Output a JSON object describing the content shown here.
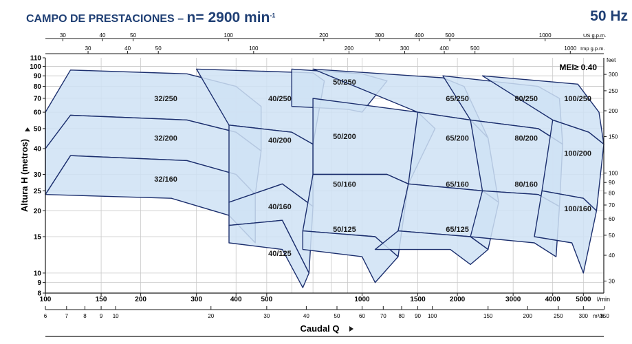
{
  "header": {
    "title_prefix": "CAMPO DE PRESTACIONES",
    "title_dash": "–",
    "speed_label": "n= 2900 min",
    "speed_exp": "-1",
    "frequency": "50 Hz"
  },
  "chart_data": {
    "type": "area",
    "title": "CAMPO DE PRESTACIONES – n= 2900 min-1",
    "ylabel": "Altura H (metros)",
    "xlabel": "Caudal Q",
    "y_scale": "log",
    "x_scale": "log",
    "grid": true,
    "annotation": "MEI≥ 0.40",
    "axes": {
      "x_lmin": {
        "unit": "l/min",
        "range": [
          100,
          5800
        ],
        "ticks": [
          100,
          150,
          200,
          300,
          400,
          500,
          1000,
          1500,
          2000,
          3000,
          4000,
          5000
        ]
      },
      "x_m3h": {
        "unit": "m³/h",
        "ticks": [
          6,
          7,
          8,
          9,
          10,
          20,
          30,
          40,
          50,
          60,
          70,
          80,
          90,
          100,
          150,
          200,
          250,
          300,
          350
        ]
      },
      "x_usgpm": {
        "unit": "US g.p.m.",
        "ticks": [
          30,
          40,
          50,
          100,
          200,
          300,
          400,
          500,
          1000
        ]
      },
      "x_impgpm": {
        "unit": "Imp g.p.m.",
        "ticks": [
          30,
          40,
          50,
          100,
          200,
          300,
          400,
          500,
          1000
        ]
      },
      "y_m": {
        "unit": "m",
        "range": [
          8,
          110
        ],
        "ticks": [
          8,
          9,
          10,
          15,
          20,
          25,
          30,
          40,
          50,
          60,
          70,
          80,
          90,
          100,
          110
        ]
      },
      "y_feet": {
        "unit": "feet",
        "ticks": [
          30,
          40,
          50,
          60,
          70,
          80,
          90,
          100,
          150,
          200,
          250,
          300
        ]
      }
    },
    "series": [
      {
        "name": "32/250",
        "top": [
          [
            100,
            60
          ],
          [
            120,
            96
          ],
          [
            280,
            92
          ],
          [
            400,
            80
          ],
          [
            480,
            64
          ]
        ],
        "bottom": [
          [
            100,
            40
          ],
          [
            120,
            58
          ],
          [
            280,
            55
          ],
          [
            400,
            48
          ],
          [
            480,
            39
          ]
        ],
        "label_at": [
          240,
          70
        ]
      },
      {
        "name": "32/200",
        "top": [
          [
            100,
            40
          ],
          [
            120,
            58
          ],
          [
            280,
            55
          ],
          [
            400,
            48
          ],
          [
            480,
            39
          ]
        ],
        "bottom": [
          [
            100,
            24
          ],
          [
            120,
            37
          ],
          [
            280,
            35
          ],
          [
            400,
            30
          ],
          [
            460,
            24
          ]
        ],
        "label_at": [
          240,
          45
        ]
      },
      {
        "name": "32/160",
        "top": [
          [
            100,
            24
          ],
          [
            120,
            37
          ],
          [
            280,
            35
          ],
          [
            400,
            30
          ],
          [
            460,
            24
          ]
        ],
        "bottom": [
          [
            100,
            24
          ],
          [
            250,
            23
          ],
          [
            380,
            19
          ],
          [
            460,
            14
          ]
        ],
        "label_at": [
          240,
          28.5
        ]
      },
      {
        "name": "40/250",
        "top": [
          [
            300,
            97
          ],
          [
            700,
            93
          ],
          [
            760,
            85
          ]
        ],
        "bottom": [
          [
            380,
            52
          ],
          [
            600,
            48
          ],
          [
            700,
            42
          ]
        ],
        "label_at": [
          550,
          70
        ]
      },
      {
        "name": "40/200",
        "top": [
          [
            380,
            52
          ],
          [
            600,
            48
          ],
          [
            700,
            42
          ]
        ],
        "bottom": [
          [
            380,
            22
          ],
          [
            560,
            27
          ],
          [
            700,
            21
          ]
        ],
        "label_at": [
          550,
          44
        ]
      },
      {
        "name": "40/160",
        "top": [
          [
            380,
            22
          ],
          [
            560,
            27
          ],
          [
            700,
            21
          ]
        ],
        "bottom": [
          [
            380,
            17
          ],
          [
            560,
            18
          ],
          [
            680,
            10
          ]
        ],
        "label_at": [
          550,
          21
        ]
      },
      {
        "name": "40/125",
        "top": [
          [
            380,
            17
          ],
          [
            560,
            18
          ],
          [
            680,
            10
          ]
        ],
        "bottom": [
          [
            380,
            14
          ],
          [
            560,
            13
          ],
          [
            650,
            8.5
          ]
        ],
        "label_at": [
          550,
          12.5
        ]
      },
      {
        "name": "50/250",
        "top": [
          [
            600,
            97
          ],
          [
            1000,
            92
          ],
          [
            1200,
            85
          ]
        ],
        "bottom": [
          [
            600,
            64
          ],
          [
            900,
            62
          ],
          [
            1000,
            60
          ]
        ],
        "label_at": [
          880,
          84
        ]
      },
      {
        "name": "50/200",
        "top": [
          [
            700,
            70
          ],
          [
            1500,
            60
          ],
          [
            1700,
            50
          ]
        ],
        "bottom": [
          [
            700,
            30
          ],
          [
            1200,
            30
          ],
          [
            1400,
            27
          ]
        ],
        "label_at": [
          880,
          46
        ]
      },
      {
        "name": "50/160",
        "top": [
          [
            700,
            30
          ],
          [
            1200,
            30
          ],
          [
            1400,
            27
          ]
        ],
        "bottom": [
          [
            650,
            16
          ],
          [
            1100,
            15
          ],
          [
            1300,
            12
          ]
        ],
        "label_at": [
          880,
          27
        ]
      },
      {
        "name": "50/125",
        "top": [
          [
            650,
            16
          ],
          [
            1100,
            15
          ],
          [
            1300,
            12
          ]
        ],
        "bottom": [
          [
            650,
            13
          ],
          [
            1000,
            12
          ],
          [
            1100,
            9
          ]
        ],
        "label_at": [
          880,
          16.3
        ]
      },
      {
        "name": "65/250",
        "top": [
          [
            700,
            97
          ],
          [
            1800,
            88
          ],
          [
            2100,
            80
          ]
        ],
        "bottom": [
          [
            1500,
            60
          ],
          [
            2200,
            55
          ],
          [
            2500,
            45
          ]
        ],
        "label_at": [
          2000,
          70
        ]
      },
      {
        "name": "65/200",
        "top": [
          [
            1500,
            60
          ],
          [
            2200,
            55
          ],
          [
            2500,
            45
          ]
        ],
        "bottom": [
          [
            1400,
            27
          ],
          [
            2400,
            25
          ],
          [
            2700,
            22
          ]
        ],
        "label_at": [
          2000,
          45
        ]
      },
      {
        "name": "65/160",
        "top": [
          [
            1400,
            27
          ],
          [
            2400,
            25
          ],
          [
            2700,
            22
          ]
        ],
        "bottom": [
          [
            1300,
            16
          ],
          [
            2200,
            15
          ],
          [
            2500,
            13
          ]
        ],
        "label_at": [
          2000,
          27
        ]
      },
      {
        "name": "65/125",
        "top": [
          [
            1300,
            16
          ],
          [
            2200,
            15
          ],
          [
            2500,
            13
          ]
        ],
        "bottom": [
          [
            1100,
            13
          ],
          [
            1900,
            13
          ],
          [
            2200,
            11
          ]
        ],
        "label_at": [
          2000,
          16.3
        ]
      },
      {
        "name": "80/250",
        "top": [
          [
            1800,
            90
          ],
          [
            3600,
            80
          ],
          [
            4200,
            70
          ]
        ],
        "bottom": [
          [
            2200,
            55
          ],
          [
            3600,
            50
          ],
          [
            4300,
            42
          ]
        ],
        "label_at": [
          3300,
          70
        ]
      },
      {
        "name": "80/200",
        "top": [
          [
            2200,
            55
          ],
          [
            3600,
            50
          ],
          [
            4300,
            42
          ]
        ],
        "bottom": [
          [
            2400,
            25
          ],
          [
            3600,
            24
          ],
          [
            4200,
            21
          ]
        ],
        "label_at": [
          3300,
          45
        ]
      },
      {
        "name": "80/160",
        "top": [
          [
            2400,
            25
          ],
          [
            3600,
            24
          ],
          [
            4200,
            21
          ]
        ],
        "bottom": [
          [
            2200,
            15
          ],
          [
            3500,
            14
          ],
          [
            4100,
            12
          ]
        ],
        "label_at": [
          3300,
          27
        ]
      },
      {
        "name": "100/250",
        "top": [
          [
            2400,
            90
          ],
          [
            4800,
            82
          ],
          [
            5600,
            60
          ]
        ],
        "bottom": [
          [
            4000,
            55
          ],
          [
            5200,
            48
          ],
          [
            5800,
            42
          ]
        ],
        "label_at": [
          4800,
          70
        ]
      },
      {
        "name": "100/200",
        "top": [
          [
            4000,
            55
          ],
          [
            5200,
            48
          ],
          [
            5800,
            42
          ]
        ],
        "bottom": [
          [
            3700,
            25
          ],
          [
            5000,
            23
          ],
          [
            5500,
            20
          ]
        ],
        "label_at": [
          4800,
          38
        ]
      },
      {
        "name": "100/160",
        "top": [
          [
            3700,
            25
          ],
          [
            5000,
            23
          ],
          [
            5500,
            20
          ]
        ],
        "bottom": [
          [
            3500,
            15
          ],
          [
            4600,
            14
          ],
          [
            5000,
            10
          ]
        ],
        "label_at": [
          4800,
          20.5
        ]
      }
    ]
  }
}
